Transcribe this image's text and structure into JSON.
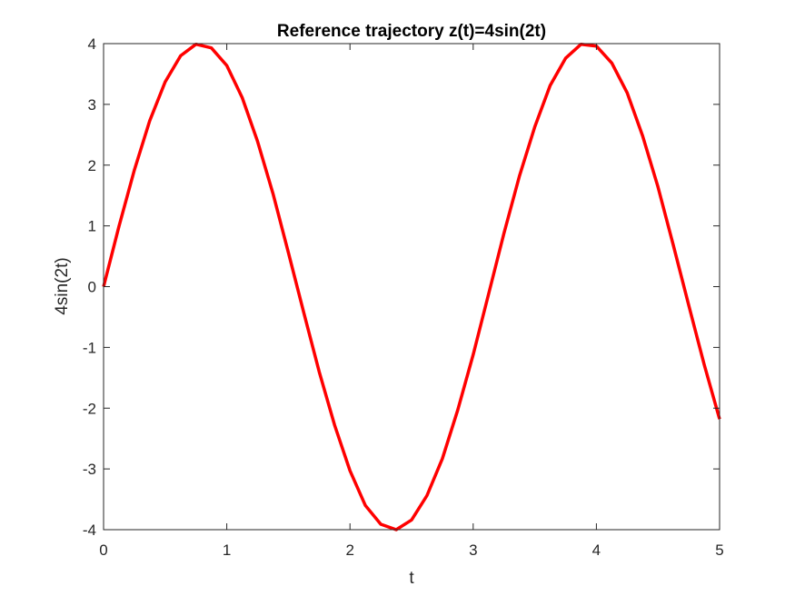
{
  "chart_data": {
    "type": "line",
    "title": "Reference trajectory z(t)=4sin(2t)",
    "xlabel": "t",
    "ylabel": "4sin(2t)",
    "xlim": [
      0,
      5
    ],
    "ylim": [
      -4,
      4
    ],
    "xticks": [
      "0",
      "1",
      "2",
      "3",
      "4",
      "5"
    ],
    "yticks": [
      "-4",
      "-3",
      "-2",
      "-1",
      "0",
      "1",
      "2",
      "3",
      "4"
    ],
    "grid": false,
    "legend": "none",
    "series": [
      {
        "color": "#ff0000",
        "x": [
          0,
          0.125,
          0.25,
          0.375,
          0.5,
          0.625,
          0.75,
          0.875,
          1,
          1.125,
          1.25,
          1.375,
          1.5,
          1.625,
          1.75,
          1.875,
          2,
          2.125,
          2.25,
          2.375,
          2.5,
          2.625,
          2.75,
          2.875,
          3,
          3.125,
          3.25,
          3.375,
          3.5,
          3.625,
          3.75,
          3.875,
          4,
          4.125,
          4.25,
          4.375,
          4.5,
          4.625,
          4.75,
          4.875,
          5
        ],
        "y": [
          0,
          0.99,
          1.92,
          2.73,
          3.37,
          3.8,
          3.99,
          3.93,
          3.64,
          3.11,
          2.39,
          1.53,
          0.56,
          -0.43,
          -1.4,
          -2.28,
          -3.03,
          -3.6,
          -3.91,
          -4.0,
          -3.84,
          -3.44,
          -2.83,
          -2.03,
          -1.12,
          -0.12,
          0.88,
          1.82,
          2.63,
          3.31,
          3.76,
          3.99,
          3.96,
          3.68,
          3.19,
          2.48,
          1.64,
          0.68,
          -0.31,
          -1.28,
          -2.18
        ]
      }
    ]
  }
}
